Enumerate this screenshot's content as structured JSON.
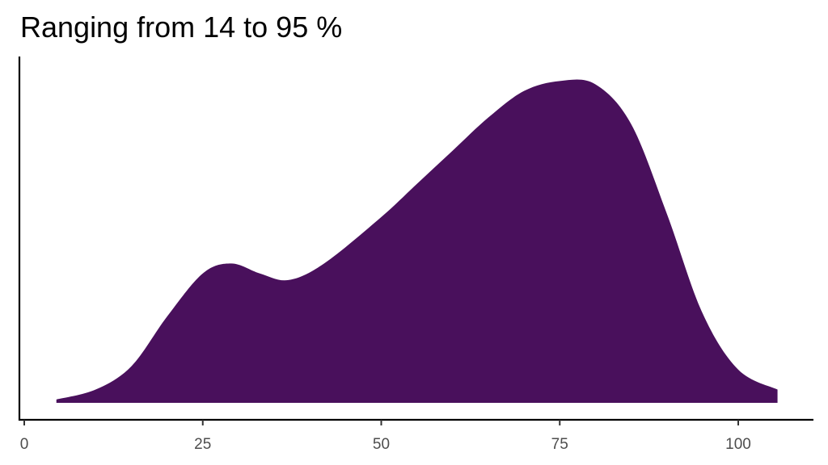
{
  "chart_data": {
    "type": "area",
    "title": "Ranging from 14 to 95 %",
    "xlabel": "",
    "ylabel": "",
    "xlim": [
      0,
      110
    ],
    "ylim": [
      0,
      1
    ],
    "x_ticks": [
      0,
      25,
      50,
      75,
      100
    ],
    "x_tick_labels": [
      "0",
      "25",
      "50",
      "75",
      "100"
    ],
    "y_ticks": [],
    "grid": false,
    "legend": "none",
    "fill_color": "#49105C",
    "series": [
      {
        "x": [
          4.5,
          10,
          15,
          20,
          25,
          29,
          33,
          37,
          42,
          50,
          55,
          60,
          65,
          70,
          75,
          80,
          85,
          90,
          95,
          100,
          105.5
        ],
        "y": [
          0.01,
          0.04,
          0.11,
          0.26,
          0.39,
          0.42,
          0.39,
          0.37,
          0.42,
          0.56,
          0.66,
          0.76,
          0.86,
          0.94,
          0.97,
          0.96,
          0.84,
          0.57,
          0.27,
          0.1,
          0.04
        ]
      }
    ]
  }
}
